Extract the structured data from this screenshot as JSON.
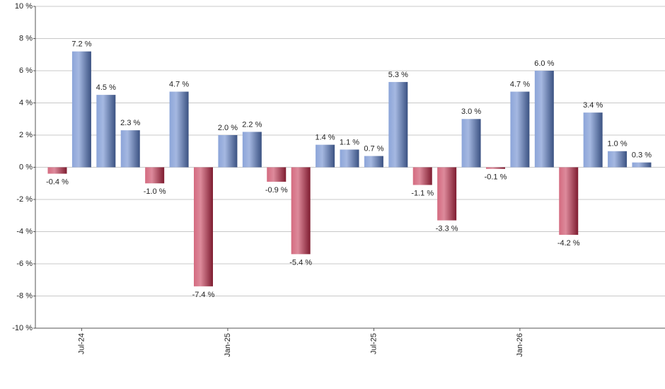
{
  "chart_data": {
    "type": "bar",
    "categories": [
      null,
      "Jul-24",
      null,
      null,
      null,
      null,
      null,
      "Jan-25",
      null,
      null,
      null,
      null,
      null,
      "Jul-25",
      null,
      null,
      null,
      null,
      null,
      "Jan-26",
      null,
      null,
      null,
      null,
      null
    ],
    "values": [
      -0.4,
      7.2,
      4.5,
      2.3,
      -1.0,
      4.7,
      -7.4,
      2.0,
      2.2,
      -0.9,
      -5.4,
      1.4,
      1.1,
      0.7,
      5.3,
      -1.1,
      -3.3,
      3.0,
      -0.1,
      4.7,
      6.0,
      -4.2,
      3.4,
      1.0,
      0.3
    ],
    "value_labels": [
      "-0.4 %",
      "7.2 %",
      "4.5 %",
      "2.3 %",
      "-1.0 %",
      "4.7 %",
      "-7.4 %",
      "2.0 %",
      "2.2 %",
      "-0.9 %",
      "-5.4 %",
      "1.4 %",
      "1.1 %",
      "0.7 %",
      "5.3 %",
      "-1.1 %",
      "-3.3 %",
      "3.0 %",
      "-0.1 %",
      "4.7 %",
      "6.0 %",
      "-4.2 %",
      "3.4 %",
      "1.0 %",
      "0.3 %"
    ],
    "positive_color": "#5b7ec8",
    "negative_color": "#c22b4a",
    "ylim": [
      -10,
      10
    ],
    "yticks": [
      {
        "value": -10,
        "label": "-10 %"
      },
      {
        "value": -8,
        "label": "-8 %"
      },
      {
        "value": -6,
        "label": "-6 %"
      },
      {
        "value": -4,
        "label": "-4 %"
      },
      {
        "value": -2,
        "label": "-2 %"
      },
      {
        "value": 0,
        "label": "0 %"
      },
      {
        "value": 2,
        "label": "2 %"
      },
      {
        "value": 4,
        "label": "4 %"
      },
      {
        "value": 6,
        "label": "6 %"
      },
      {
        "value": 8,
        "label": "8 %"
      },
      {
        "value": 10,
        "label": "10 %"
      }
    ],
    "grid": true
  }
}
